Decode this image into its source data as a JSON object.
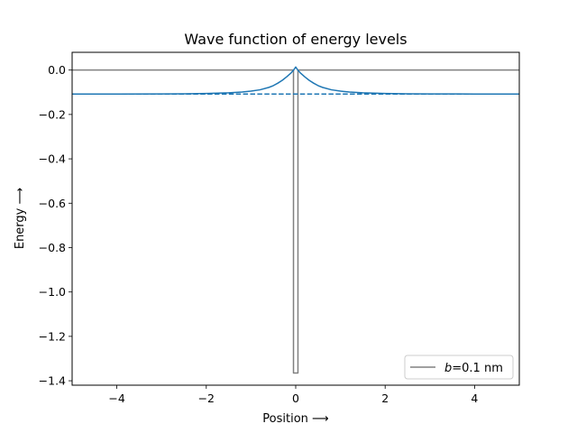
{
  "chart_data": {
    "type": "line",
    "title": "Wave function of energy levels",
    "xlabel": "Position ⟶",
    "ylabel": "Energy ⟶",
    "xlim": [
      -5,
      5
    ],
    "ylim": [
      -1.42,
      0.08
    ],
    "xticks": [
      {
        "value": -4,
        "label": "−4"
      },
      {
        "value": -2,
        "label": "−2"
      },
      {
        "value": 0,
        "label": "0"
      },
      {
        "value": 2,
        "label": "2"
      },
      {
        "value": 4,
        "label": "4"
      }
    ],
    "yticks": [
      {
        "value": 0.0,
        "label": "0.0"
      },
      {
        "value": -0.2,
        "label": "−0.2"
      },
      {
        "value": -0.4,
        "label": "−0.4"
      },
      {
        "value": -0.6,
        "label": "−0.6"
      },
      {
        "value": -0.8,
        "label": "−0.8"
      },
      {
        "value": -1.0,
        "label": "−1.0"
      },
      {
        "value": -1.2,
        "label": "−1.2"
      },
      {
        "value": -1.4,
        "label": "−1.4"
      }
    ],
    "grid": false,
    "legend": {
      "placement": "lower-right",
      "entries": [
        {
          "prefix": "b",
          "suffix": "=0.1 nm",
          "color": "#808080"
        }
      ]
    },
    "series": [
      {
        "kind": "potential-well",
        "color": "#808080",
        "x": [
          -5,
          -0.05,
          -0.05,
          0.05,
          0.05,
          5
        ],
        "y": [
          0,
          0,
          -1.365,
          -1.365,
          0,
          0
        ]
      },
      {
        "kind": "energy-level",
        "color": "#1f77b4",
        "style": "dashed",
        "x": [
          -5,
          5
        ],
        "y": [
          -0.108,
          -0.108
        ]
      },
      {
        "kind": "wave-function",
        "color": "#1f77b4",
        "style": "solid",
        "x": [
          -5,
          -4,
          -3,
          -2.5,
          -2,
          -1.5,
          -1.2,
          -1.0,
          -0.8,
          -0.6,
          -0.5,
          -0.4,
          -0.3,
          -0.2,
          -0.1,
          -0.05,
          0,
          0.05,
          0.1,
          0.2,
          0.3,
          0.4,
          0.5,
          0.6,
          0.8,
          1.0,
          1.2,
          1.5,
          2,
          2.5,
          3,
          4,
          5
        ],
        "y": [
          -0.108,
          -0.1078,
          -0.1074,
          -0.1068,
          -0.1054,
          -0.1025,
          -0.099,
          -0.095,
          -0.089,
          -0.078,
          -0.07,
          -0.059,
          -0.046,
          -0.03,
          -0.012,
          -0.001,
          0.014,
          -0.001,
          -0.012,
          -0.03,
          -0.046,
          -0.059,
          -0.07,
          -0.078,
          -0.089,
          -0.095,
          -0.099,
          -0.1025,
          -0.1054,
          -0.1068,
          -0.1074,
          -0.1078,
          -0.108
        ]
      }
    ]
  }
}
